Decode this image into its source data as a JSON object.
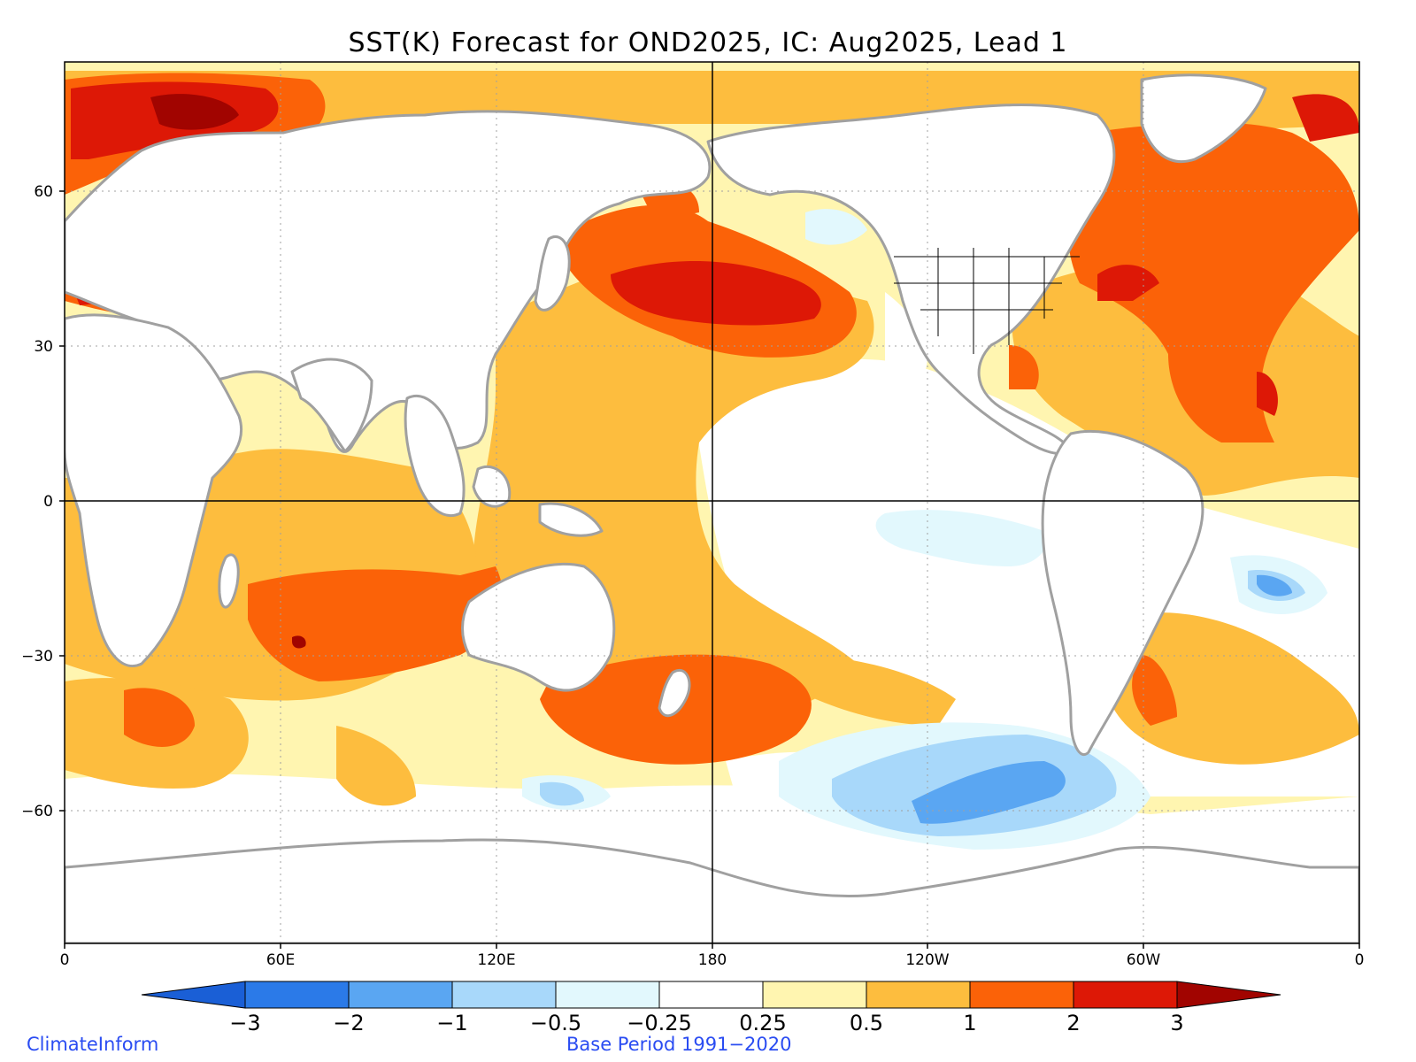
{
  "title": "SST(K) Forecast for OND2025, IC: Aug2025, Lead 1",
  "x_ticks": [
    "0",
    "60E",
    "120E",
    "180",
    "120W",
    "60W",
    "0"
  ],
  "y_ticks": [
    "60",
    "30",
    "0",
    "−30",
    "−60"
  ],
  "colorbar": {
    "labels": [
      "−3",
      "−2",
      "−1",
      "−0.5",
      "−0.25",
      "0.25",
      "0.5",
      "1",
      "2",
      "3"
    ],
    "colors": {
      "below_min": "#1a5fd6",
      "c1": "#2b7ae8",
      "c2": "#5aa6f2",
      "c3": "#a8d8fa",
      "c4": "#e2f8fd",
      "c5": "#ffffff",
      "c6": "#fff5b0",
      "c7": "#fdbd3e",
      "c8": "#fb6208",
      "c9": "#dd1806",
      "above_max": "#a10400"
    }
  },
  "colors": {
    "land_outline": "#a0a0a0",
    "land_fill": "#ffffff",
    "anomaly_weak_pos": "#fff5b0",
    "anomaly_mod_pos": "#fdbd3e",
    "anomaly_strong_pos": "#fb6208",
    "anomaly_vstrong_pos": "#dd1806",
    "anomaly_extreme_pos": "#a10400",
    "anomaly_weak_neg": "#e2f8fd",
    "anomaly_mod_neg": "#a8d8fa",
    "anomaly_strong_neg": "#5aa6f2"
  },
  "footer": {
    "left": "ClimateInform",
    "center": "Base Period 1991−2020"
  }
}
